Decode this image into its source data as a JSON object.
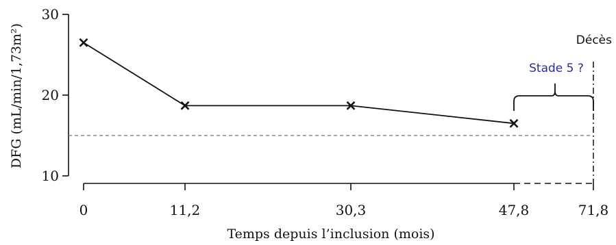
{
  "chart_data": {
    "type": "line",
    "xlabel": "Temps depuis l’inclusion (mois)",
    "ylabel": "DFG (mL/min/1,73m²)",
    "ylim": [
      10,
      30
    ],
    "yticks": [
      {
        "value": 10,
        "label": "10"
      },
      {
        "value": 20,
        "label": "20"
      },
      {
        "value": 30,
        "label": "30"
      }
    ],
    "xticks": [
      {
        "label": "0"
      },
      {
        "label": "11,2"
      },
      {
        "label": "30,3"
      },
      {
        "label": "47,8"
      },
      {
        "label": "71,8"
      }
    ],
    "series": [
      {
        "x": [
          "0",
          "11,2",
          "30,3",
          "47,8"
        ],
        "values": [
          26.5,
          18.7,
          18.7,
          16.5
        ],
        "marker": "x",
        "color": "#111111"
      }
    ],
    "reference_line": {
      "y": 15,
      "style": "dashed",
      "color": "#8a8a8a"
    },
    "x_axis_dashed_segment": {
      "from": "47,8",
      "to": "71,8"
    },
    "annotations": {
      "stage": {
        "text": "Stade 5 ?",
        "color": "#2b2b9a",
        "span": [
          "47,8",
          "71,8"
        ]
      },
      "event": {
        "text": "Décès",
        "at": "71,8",
        "line_style": "dash-dot"
      }
    },
    "grid": false,
    "legend": "none"
  }
}
